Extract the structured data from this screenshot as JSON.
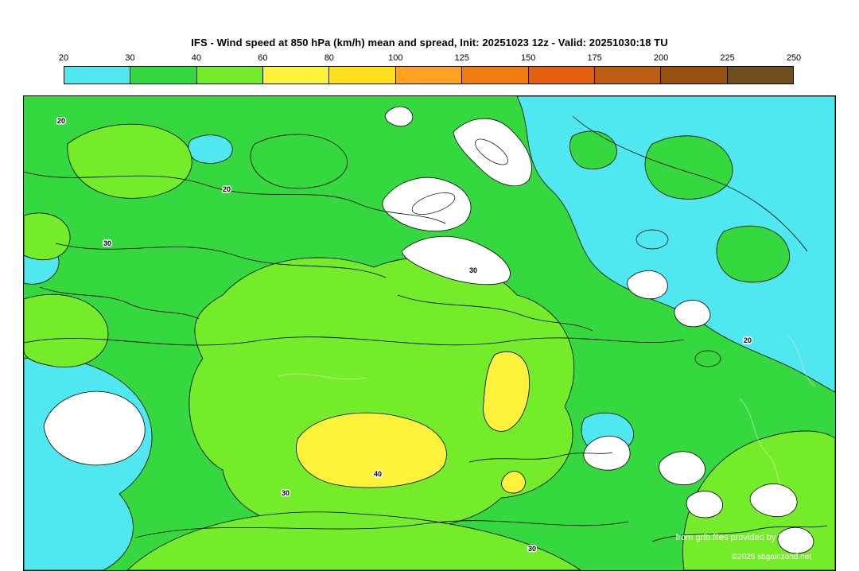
{
  "title": "IFS - Wind speed at 850 hPa (km/h) mean and spread, Init: 20251023 12z - Valid: 20251030:18 TU",
  "colorbar": {
    "ticks": [
      "20",
      "30",
      "40",
      "60",
      "80",
      "100",
      "125",
      "150",
      "175",
      "200",
      "225",
      "250"
    ],
    "segments": [
      {
        "label": "20-30",
        "color": "#4FE8F0"
      },
      {
        "label": "30-40",
        "color": "#36D840"
      },
      {
        "label": "40-60",
        "color": "#74EC2A"
      },
      {
        "label": "60-80",
        "color": "#FFF23A"
      },
      {
        "label": "80-100",
        "color": "#FFDF1E"
      },
      {
        "label": "100-125",
        "color": "#FFA21F"
      },
      {
        "label": "125-150",
        "color": "#F07D10"
      },
      {
        "label": "150-175",
        "color": "#E2600E"
      },
      {
        "label": "175-200",
        "color": "#BC5E12"
      },
      {
        "label": "200-225",
        "color": "#97500E"
      },
      {
        "label": "225-250",
        "color": "#6E4D1E"
      }
    ]
  },
  "map": {
    "contour_labels": [
      "20",
      "30",
      "20",
      "30",
      "40",
      "30",
      "20",
      "30"
    ],
    "credits": {
      "line1": "from grib files provided by ECMWF",
      "line2": "©2025 sbgairizond.net"
    },
    "region_colors": {
      "calm_below_20": "#FFFFFF",
      "cyan_20_30": "#4FE8F0",
      "green_30_40": "#36D840",
      "bright_green_40_60": "#74EC2A",
      "yellow_60_80": "#FFF23A",
      "contour": "#000000"
    }
  }
}
